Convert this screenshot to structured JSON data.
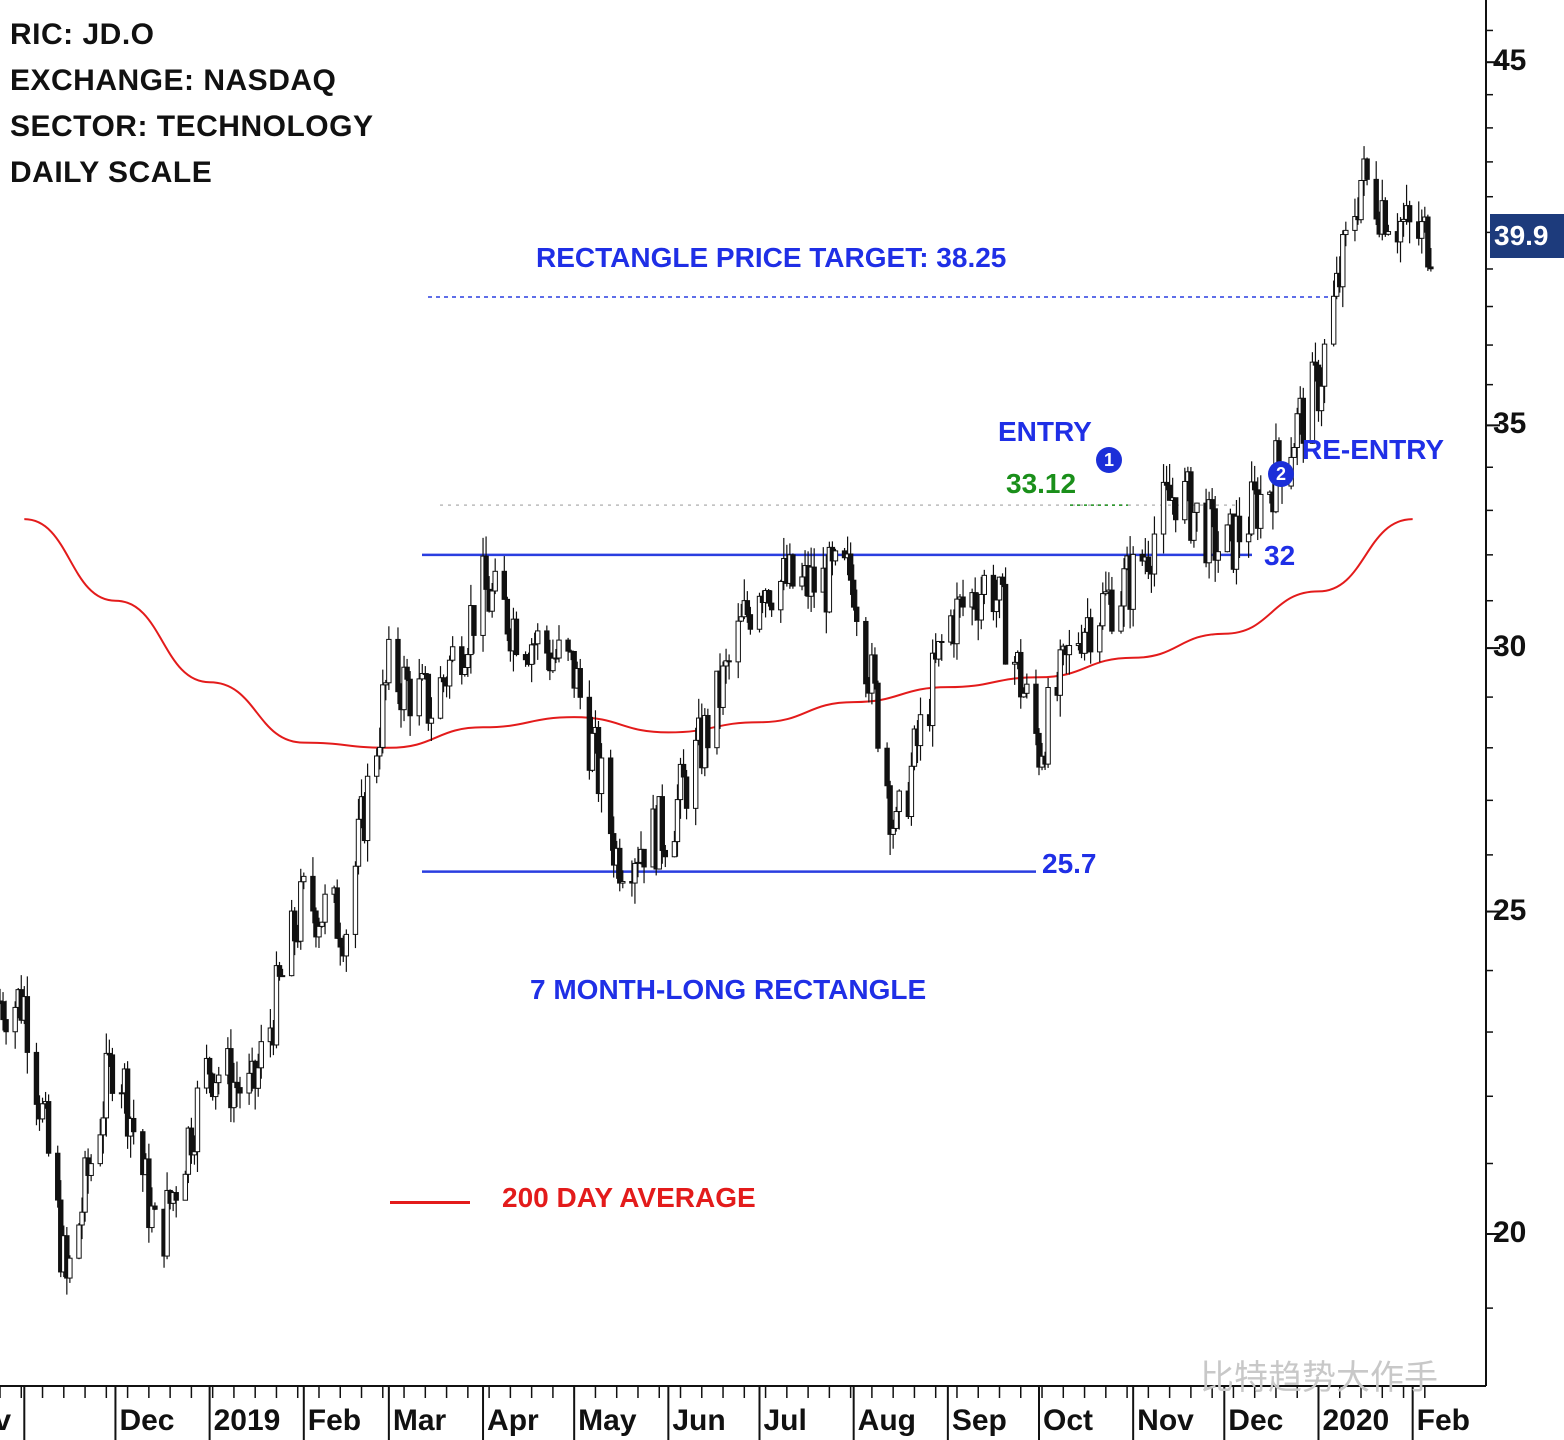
{
  "info": {
    "ric": "RIC: JD.O",
    "exchange": "EXCHANGE: NASDAQ",
    "sector": "SECTOR: TECHNOLOGY",
    "scale": "DAILY SCALE"
  },
  "annotations": {
    "target": "RECTANGLE PRICE TARGET: 38.25",
    "entry": "ENTRY",
    "entry_price": "33.12",
    "re_entry": "RE-ENTRY",
    "marker1": "1",
    "marker2": "2",
    "resistance": "32",
    "support": "25.7",
    "pattern": "7 MONTH-LONG RECTANGLE",
    "ma_legend": "200 DAY AVERAGE",
    "last_price": "39.9"
  },
  "watermark": "比特趋势大作手",
  "colors": {
    "annotation": "#1f2fe6",
    "entry_price": "#1a8f1a",
    "moving_average": "#e31b1b",
    "last_price_box": "#1d3b7c",
    "candle": "#111111"
  },
  "chart_data": {
    "type": "candlestick",
    "title": "",
    "scale": "log",
    "ylim": [
      17.5,
      47
    ],
    "yticks": [
      20,
      25,
      30,
      35,
      45
    ],
    "xticks": [
      "ov",
      "Dec",
      "2019",
      "Feb",
      "Mar",
      "Apr",
      "May",
      "Jun",
      "Jul",
      "Aug",
      "Sep",
      "Oct",
      "Nov",
      "Dec",
      "2020",
      "Feb"
    ],
    "close_series": {
      "name": "JD.O",
      "x": [
        "2018-11-01",
        "2018-11-15",
        "2018-12-01",
        "2018-12-15",
        "2019-01-01",
        "2019-01-15",
        "2019-02-01",
        "2019-02-15",
        "2019-03-01",
        "2019-03-15",
        "2019-04-01",
        "2019-04-15",
        "2019-05-01",
        "2019-05-15",
        "2019-06-01",
        "2019-06-15",
        "2019-07-01",
        "2019-07-15",
        "2019-08-01",
        "2019-08-15",
        "2019-09-01",
        "2019-09-15",
        "2019-10-01",
        "2019-10-15",
        "2019-11-01",
        "2019-11-15",
        "2019-12-01",
        "2019-12-15",
        "2020-01-01",
        "2020-01-15",
        "2020-02-01"
      ],
      "values": [
        23.5,
        19.3,
        22.8,
        19.8,
        22.5,
        22.0,
        25.2,
        24.8,
        29.5,
        28.8,
        31.2,
        30.3,
        29.5,
        26.0,
        26.5,
        28.5,
        31.5,
        31.3,
        31.5,
        26.3,
        30.5,
        31.5,
        28.0,
        30.5,
        31.5,
        33.5,
        32.0,
        33.5,
        36.0,
        41.5,
        39.9
      ]
    },
    "moving_average": {
      "name": "200 DAY AVERAGE",
      "x": [
        "2018-11-01",
        "2018-12-01",
        "2019-01-01",
        "2019-02-01",
        "2019-03-01",
        "2019-04-01",
        "2019-05-01",
        "2019-06-01",
        "2019-07-01",
        "2019-08-01",
        "2019-09-01",
        "2019-10-01",
        "2019-11-01",
        "2019-12-01",
        "2020-01-01",
        "2020-02-01"
      ],
      "values": [
        32.8,
        31.0,
        29.3,
        28.1,
        28.0,
        28.4,
        28.6,
        28.3,
        28.5,
        28.9,
        29.2,
        29.4,
        29.8,
        30.3,
        31.2,
        32.8
      ]
    },
    "levels": [
      {
        "label": "32",
        "value": 32.0
      },
      {
        "label": "25.7",
        "value": 25.7
      },
      {
        "label": "RECTANGLE PRICE TARGET: 38.25",
        "value": 38.25
      },
      {
        "label": "33.12",
        "value": 33.12
      }
    ],
    "last_price": 39.9
  }
}
